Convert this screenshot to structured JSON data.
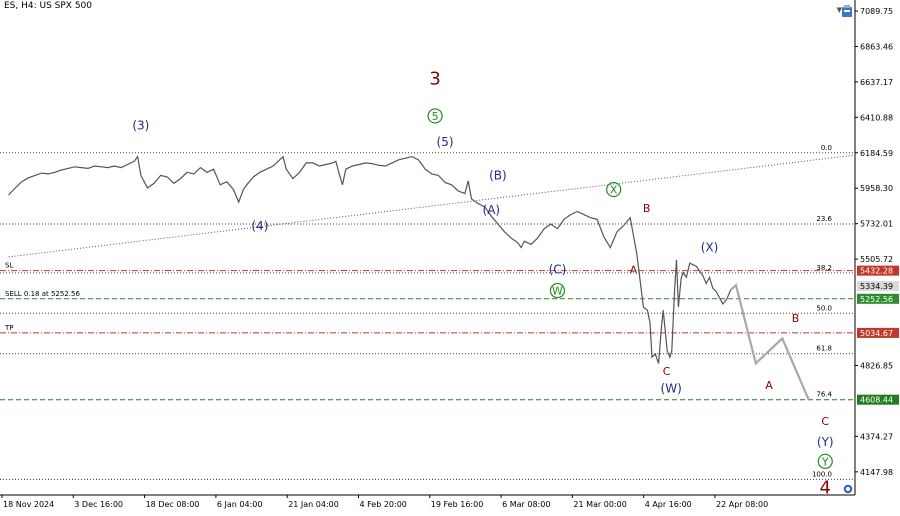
{
  "header": {
    "symbol_text": "ES, H4:  US SPX 500"
  },
  "colors": {
    "price_line": "#555555",
    "grid_dotted": "#555555",
    "fib_line": "#444444",
    "sl_line": "#c0392b",
    "tp_line": "#c0392b",
    "sell_line": "#2e8b2e",
    "target_line": "#1e7d1e",
    "projection": "#a8a8a8",
    "wave_blue": "#1f2b8c",
    "wave_green": "#1f8a1f",
    "wave_red": "#8b0000",
    "sl_tag_bg": "#c0392b",
    "tp_tag_bg": "#c0392b",
    "sell_tag_bg": "#2e8b2e",
    "target_tag_bg": "#1e7d1e",
    "current_tag_bg": "#d9d9d9"
  },
  "icons": {
    "corner": "trade-icon",
    "bottom": "settings-circle-icon",
    "scroll": "triangle-down-icon"
  },
  "chart_data": {
    "type": "line",
    "title": "ES, H4:  US SPX 500",
    "y_axis": {
      "range": [
        4000,
        7160
      ],
      "ticks": [
        "7089.75",
        "6863.46",
        "6637.17",
        "6410.88",
        "6184.59",
        "5958.30",
        "5732.01",
        "5505.72",
        "4826.85",
        "4374.27",
        "4147.98"
      ]
    },
    "x_axis": {
      "ticks": [
        "18 Nov 2024",
        "3 Dec 16:00",
        "18 Dec 08:00",
        "6 Jan 04:00",
        "21 Jan 04:00",
        "4 Feb 20:00",
        "19 Feb 16:00",
        "6 Mar 08:00",
        "21 Mar 00:00",
        "4 Apr 16:00",
        "22 Apr 08:00"
      ]
    },
    "price_series": [
      [
        0,
        5915
      ],
      [
        1,
        5960
      ],
      [
        2,
        6000
      ],
      [
        3,
        6025
      ],
      [
        4,
        6040
      ],
      [
        5,
        6055
      ],
      [
        6,
        6050
      ],
      [
        7,
        6060
      ],
      [
        8,
        6075
      ],
      [
        9,
        6085
      ],
      [
        10,
        6095
      ],
      [
        11,
        6090
      ],
      [
        12,
        6085
      ],
      [
        13,
        6100
      ],
      [
        14,
        6095
      ],
      [
        15,
        6090
      ],
      [
        16,
        6100
      ],
      [
        17,
        6090
      ],
      [
        18,
        6110
      ],
      [
        19,
        6130
      ],
      [
        19.5,
        6160
      ],
      [
        20,
        6040
      ],
      [
        21,
        5960
      ],
      [
        22,
        5990
      ],
      [
        23,
        6040
      ],
      [
        24,
        6030
      ],
      [
        25,
        5990
      ],
      [
        26,
        6020
      ],
      [
        27,
        6060
      ],
      [
        28,
        6050
      ],
      [
        29,
        6090
      ],
      [
        30,
        6060
      ],
      [
        31,
        6080
      ],
      [
        32,
        5980
      ],
      [
        33,
        6000
      ],
      [
        34,
        5950
      ],
      [
        34.8,
        5870
      ],
      [
        35.5,
        5950
      ],
      [
        36,
        5980
      ],
      [
        37,
        6030
      ],
      [
        38,
        6060
      ],
      [
        39,
        6080
      ],
      [
        40,
        6100
      ],
      [
        41,
        6140
      ],
      [
        41.5,
        6160
      ],
      [
        42,
        6080
      ],
      [
        43,
        6020
      ],
      [
        44,
        6060
      ],
      [
        45,
        6120
      ],
      [
        46,
        6120
      ],
      [
        47,
        6100
      ],
      [
        48,
        6110
      ],
      [
        49,
        6120
      ],
      [
        49.5,
        6130
      ],
      [
        50,
        6050
      ],
      [
        50.5,
        5980
      ],
      [
        51,
        6080
      ],
      [
        52,
        6100
      ],
      [
        53,
        6110
      ],
      [
        54,
        6120
      ],
      [
        55,
        6115
      ],
      [
        56,
        6105
      ],
      [
        57,
        6100
      ],
      [
        58,
        6120
      ],
      [
        59,
        6140
      ],
      [
        60,
        6150
      ],
      [
        61,
        6160
      ],
      [
        62,
        6140
      ],
      [
        62.5,
        6110
      ],
      [
        63,
        6080
      ],
      [
        64,
        6050
      ],
      [
        65,
        6040
      ],
      [
        66,
        5995
      ],
      [
        67,
        5980
      ],
      [
        68,
        5940
      ],
      [
        69,
        5925
      ],
      [
        69.5,
        6005
      ],
      [
        70,
        5890
      ],
      [
        71,
        5860
      ],
      [
        72,
        5840
      ],
      [
        73,
        5780
      ],
      [
        74,
        5730
      ],
      [
        75,
        5680
      ],
      [
        76,
        5640
      ],
      [
        77,
        5610
      ],
      [
        77.5,
        5580
      ],
      [
        78,
        5620
      ],
      [
        79,
        5600
      ],
      [
        80,
        5640
      ],
      [
        81,
        5700
      ],
      [
        82,
        5730
      ],
      [
        83,
        5700
      ],
      [
        84,
        5760
      ],
      [
        85,
        5790
      ],
      [
        86,
        5810
      ],
      [
        87,
        5790
      ],
      [
        88,
        5770
      ],
      [
        89,
        5760
      ],
      [
        90,
        5650
      ],
      [
        91,
        5580
      ],
      [
        92,
        5680
      ],
      [
        93,
        5720
      ],
      [
        94,
        5770
      ],
      [
        95,
        5540
      ],
      [
        96,
        5200
      ],
      [
        96.6,
        5180
      ],
      [
        97,
        5100
      ],
      [
        97.3,
        4880
      ],
      [
        97.8,
        4900
      ],
      [
        98.3,
        4840
      ],
      [
        98.7,
        5060
      ],
      [
        99,
        5180
      ],
      [
        99.3,
        5050
      ],
      [
        99.6,
        4920
      ],
      [
        100,
        4880
      ],
      [
        100.3,
        4920
      ],
      [
        100.7,
        5300
      ],
      [
        101,
        5500
      ],
      [
        101.3,
        5200
      ],
      [
        101.7,
        5380
      ],
      [
        102,
        5420
      ],
      [
        102.5,
        5390
      ],
      [
        103,
        5480
      ],
      [
        103.5,
        5470
      ],
      [
        104,
        5460
      ],
      [
        104.5,
        5430
      ],
      [
        105,
        5400
      ],
      [
        105.5,
        5350
      ],
      [
        106,
        5390
      ],
      [
        106.5,
        5320
      ],
      [
        107,
        5300
      ],
      [
        107.5,
        5260
      ],
      [
        108,
        5220
      ],
      [
        108.6,
        5250
      ],
      [
        109.2,
        5310
      ]
    ],
    "projection_series": [
      [
        110,
        5340
      ],
      [
        113,
        4840
      ],
      [
        117,
        5000
      ],
      [
        121,
        4608
      ]
    ],
    "levels": [
      {
        "name": "fib-0",
        "value": 6184.59,
        "label": "0.0",
        "style": "dotted-dark"
      },
      {
        "name": "fib-23.6",
        "value": 5730,
        "label": "23.6",
        "style": "dotted-dark"
      },
      {
        "name": "sl",
        "value": 5432.28,
        "label": "SL",
        "tag": "5432.28",
        "style": "dashdot-red"
      },
      {
        "name": "fib-38.2",
        "value": 5418,
        "label": "38.2",
        "style": "dotted-dark"
      },
      {
        "name": "current",
        "value": 5334,
        "label": "",
        "tag": "5334.39",
        "style": "none"
      },
      {
        "name": "sell",
        "value": 5252.56,
        "label": "SELL 0.18 at 5252.56",
        "tag": "5252.56",
        "style": "dashed-green"
      },
      {
        "name": "fib-50",
        "value": 5160,
        "label": "50.0",
        "style": "dotted-dark"
      },
      {
        "name": "tp",
        "value": 5034.67,
        "label": "TP",
        "tag": "5034.67",
        "style": "dashdot-red"
      },
      {
        "name": "fib-61.8",
        "value": 4902,
        "label": "61.8",
        "style": "dotted-dark"
      },
      {
        "name": "target",
        "value": 4608.44,
        "label": "76.4",
        "tag": "4608.44",
        "style": "dashed-green"
      },
      {
        "name": "fib-100",
        "value": 4100,
        "label": "100.0",
        "style": "dotted-dark"
      }
    ],
    "trendline": [
      [
        0,
        5520
      ],
      [
        128,
        6170
      ]
    ],
    "waves": [
      {
        "text": "(3)",
        "x": 20,
        "y": 6360,
        "color": "blue",
        "circle": false,
        "size": 12
      },
      {
        "text": "(4)",
        "x": 38,
        "y": 5720,
        "color": "blue",
        "circle": false,
        "size": 12
      },
      {
        "text": "(5)",
        "x": 66,
        "y": 6255,
        "color": "blue",
        "circle": false,
        "size": 12
      },
      {
        "text": "5",
        "x": 64.5,
        "y": 6420,
        "color": "green",
        "circle": true,
        "size": 11
      },
      {
        "text": "3",
        "x": 64.5,
        "y": 6660,
        "color": "red",
        "circle": false,
        "size": 18
      },
      {
        "text": "(B)",
        "x": 74,
        "y": 6040,
        "color": "blue",
        "circle": false,
        "size": 12
      },
      {
        "text": "(A)",
        "x": 73,
        "y": 5820,
        "color": "blue",
        "circle": false,
        "size": 12
      },
      {
        "text": "(C)",
        "x": 83,
        "y": 5440,
        "color": "blue",
        "circle": false,
        "size": 12
      },
      {
        "text": "W",
        "x": 83,
        "y": 5305,
        "color": "green",
        "circle": true,
        "size": 11
      },
      {
        "text": "X",
        "x": 91.5,
        "y": 5950,
        "color": "green",
        "circle": true,
        "size": 11
      },
      {
        "text": "B",
        "x": 96.5,
        "y": 5830,
        "color": "red",
        "circle": false,
        "size": 11
      },
      {
        "text": "A",
        "x": 94.5,
        "y": 5440,
        "color": "red",
        "circle": false,
        "size": 11
      },
      {
        "text": "(X)",
        "x": 106,
        "y": 5580,
        "color": "blue",
        "circle": false,
        "size": 12
      },
      {
        "text": "C",
        "x": 99.5,
        "y": 4790,
        "color": "red",
        "circle": false,
        "size": 11
      },
      {
        "text": "(W)",
        "x": 100.2,
        "y": 4680,
        "color": "blue",
        "circle": false,
        "size": 12
      },
      {
        "text": "A",
        "x": 115,
        "y": 4700,
        "color": "red",
        "circle": false,
        "size": 11
      },
      {
        "text": "B",
        "x": 119,
        "y": 5130,
        "color": "red",
        "circle": false,
        "size": 11
      },
      {
        "text": "C",
        "x": 123.5,
        "y": 4470,
        "color": "red",
        "circle": false,
        "size": 11
      },
      {
        "text": "(Y)",
        "x": 123.5,
        "y": 4340,
        "color": "blue",
        "circle": false,
        "size": 12
      },
      {
        "text": "Y",
        "x": 123.5,
        "y": 4215,
        "color": "green",
        "circle": true,
        "size": 11
      },
      {
        "text": "4",
        "x": 123.5,
        "y": 4050,
        "color": "red",
        "circle": false,
        "size": 18
      }
    ]
  }
}
